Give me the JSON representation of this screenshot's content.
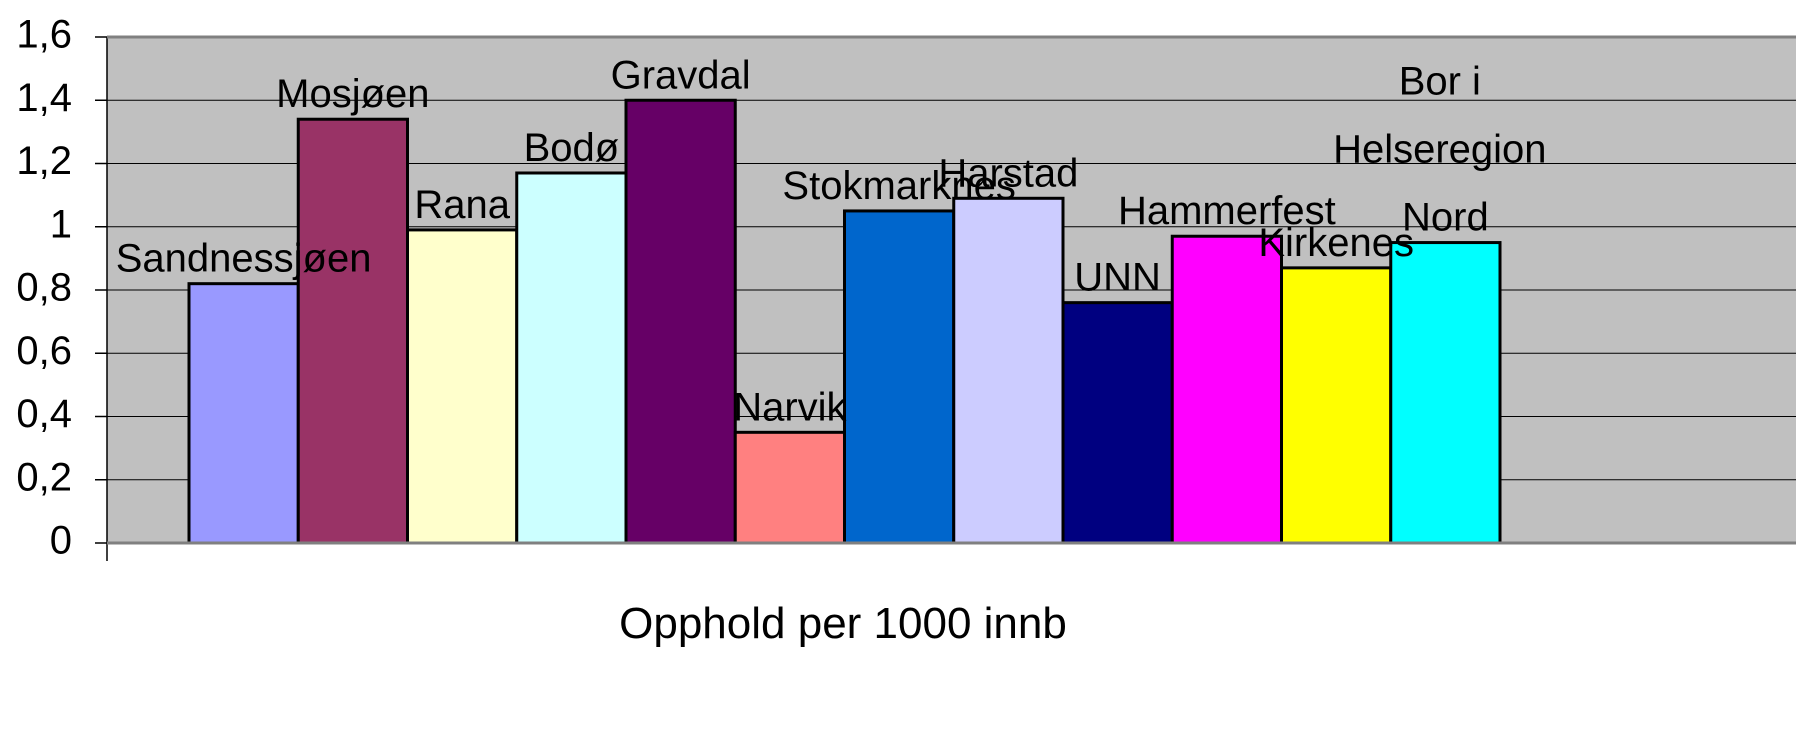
{
  "chart_data": {
    "type": "bar",
    "x_label": "Opphold per 1000 innb",
    "categories": [
      "Sandnessjøen",
      "Mosjøen",
      "Rana",
      "Bodø",
      "Gravdal",
      "Narvik",
      "Stokmarknes",
      "Harstad",
      "UNN",
      "Hammerfest",
      "Kirkenes",
      "Bor i Helseregion Nord"
    ],
    "values": [
      0.82,
      1.34,
      0.99,
      1.17,
      1.4,
      0.35,
      1.05,
      1.09,
      0.76,
      0.97,
      0.87,
      0.95
    ],
    "colors": [
      "#9999ff",
      "#993366",
      "#ffffcc",
      "#ccffff",
      "#660066",
      "#ff8080",
      "#0066cc",
      "#ccccff",
      "#000080",
      "#ff00ff",
      "#ffff00",
      "#00ffff"
    ],
    "ylim": [
      0,
      1.6
    ],
    "yticks": [
      0,
      {
        "value": 0.2,
        "label": "0,2"
      },
      {
        "value": 0.4,
        "label": "0,4"
      },
      {
        "value": 0.6,
        "label": "0,6"
      },
      {
        "value": 0.8,
        "label": "0,8"
      },
      1,
      {
        "value": 1.2,
        "label": "1,2"
      },
      {
        "value": 1.4,
        "label": "1,4"
      },
      {
        "value": 1.6,
        "label": "1,6"
      }
    ],
    "grid": true
  }
}
